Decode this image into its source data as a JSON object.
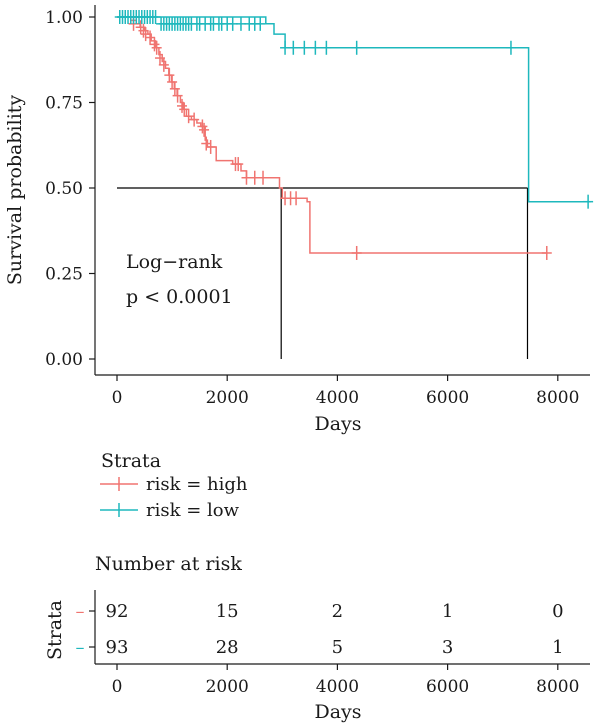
{
  "colors": {
    "high": "#F07470",
    "low": "#1EB8BD",
    "median": "#000000"
  },
  "chart_data": {
    "type": "line",
    "subtype": "kaplan-meier",
    "xlabel": "Days",
    "ylabel": "Survival probability",
    "xlim": [
      0,
      8600
    ],
    "ylim": [
      0,
      1
    ],
    "x_ticks": [
      "0",
      "2000",
      "4000",
      "6000",
      "8000"
    ],
    "x_tick_values": [
      0,
      2000,
      4000,
      6000,
      8000
    ],
    "y_ticks": [
      "0.00",
      "0.25",
      "0.50",
      "0.75",
      "1.00"
    ],
    "y_tick_values": [
      0,
      0.25,
      0.5,
      0.75,
      1.0
    ],
    "annotation": [
      "Log−rank",
      "p < 0.0001"
    ],
    "legend": {
      "title": "Strata",
      "placement": "bottom",
      "entries": [
        "risk = high",
        "risk = low"
      ]
    },
    "series": [
      {
        "name": "risk = high",
        "color": "#F07470",
        "steps": [
          [
            0,
            1.0
          ],
          [
            250,
            0.99
          ],
          [
            350,
            0.98
          ],
          [
            420,
            0.97
          ],
          [
            500,
            0.96
          ],
          [
            560,
            0.95
          ],
          [
            620,
            0.93
          ],
          [
            700,
            0.91
          ],
          [
            760,
            0.89
          ],
          [
            820,
            0.87
          ],
          [
            880,
            0.85
          ],
          [
            940,
            0.83
          ],
          [
            990,
            0.81
          ],
          [
            1040,
            0.79
          ],
          [
            1090,
            0.77
          ],
          [
            1150,
            0.75
          ],
          [
            1200,
            0.73
          ],
          [
            1260,
            0.71
          ],
          [
            1350,
            0.7
          ],
          [
            1450,
            0.69
          ],
          [
            1520,
            0.68
          ],
          [
            1600,
            0.64
          ],
          [
            1640,
            0.62
          ],
          [
            1800,
            0.58
          ],
          [
            2100,
            0.57
          ],
          [
            2250,
            0.55
          ],
          [
            2350,
            0.53
          ],
          [
            2950,
            0.5
          ],
          [
            3000,
            0.47
          ],
          [
            3450,
            0.46
          ],
          [
            3500,
            0.31
          ],
          [
            7800,
            0.31
          ]
        ],
        "censors": [
          [
            150,
            1.0
          ],
          [
            300,
            0.98
          ],
          [
            430,
            0.97
          ],
          [
            480,
            0.96
          ],
          [
            520,
            0.95
          ],
          [
            600,
            0.94
          ],
          [
            680,
            0.92
          ],
          [
            720,
            0.91
          ],
          [
            780,
            0.88
          ],
          [
            850,
            0.86
          ],
          [
            950,
            0.83
          ],
          [
            1000,
            0.81
          ],
          [
            1050,
            0.79
          ],
          [
            1100,
            0.77
          ],
          [
            1180,
            0.74
          ],
          [
            1220,
            0.73
          ],
          [
            1300,
            0.71
          ],
          [
            1400,
            0.7
          ],
          [
            1550,
            0.68
          ],
          [
            1580,
            0.67
          ],
          [
            1620,
            0.63
          ],
          [
            1700,
            0.62
          ],
          [
            2150,
            0.57
          ],
          [
            2200,
            0.57
          ],
          [
            2350,
            0.53
          ],
          [
            2500,
            0.53
          ],
          [
            2650,
            0.53
          ],
          [
            3050,
            0.47
          ],
          [
            3150,
            0.47
          ],
          [
            3250,
            0.47
          ],
          [
            4350,
            0.31
          ],
          [
            7800,
            0.31
          ]
        ]
      },
      {
        "name": "risk = low",
        "color": "#1EB8BD",
        "steps": [
          [
            0,
            1.0
          ],
          [
            2700,
            0.98
          ],
          [
            2850,
            0.95
          ],
          [
            3050,
            0.91
          ],
          [
            7450,
            0.91
          ],
          [
            7470,
            0.46
          ],
          [
            8600,
            0.46
          ]
        ],
        "censors": [
          [
            50,
            1.0
          ],
          [
            100,
            1.0
          ],
          [
            150,
            1.0
          ],
          [
            200,
            1.0
          ],
          [
            250,
            1.0
          ],
          [
            300,
            1.0
          ],
          [
            350,
            1.0
          ],
          [
            400,
            1.0
          ],
          [
            450,
            1.0
          ],
          [
            500,
            1.0
          ],
          [
            550,
            1.0
          ],
          [
            600,
            1.0
          ],
          [
            650,
            1.0
          ],
          [
            700,
            1.0
          ],
          [
            800,
            0.98
          ],
          [
            850,
            0.98
          ],
          [
            900,
            0.98
          ],
          [
            950,
            0.98
          ],
          [
            1000,
            0.98
          ],
          [
            1050,
            0.98
          ],
          [
            1100,
            0.98
          ],
          [
            1150,
            0.98
          ],
          [
            1200,
            0.98
          ],
          [
            1250,
            0.98
          ],
          [
            1300,
            0.98
          ],
          [
            1350,
            0.98
          ],
          [
            1450,
            0.98
          ],
          [
            1500,
            0.98
          ],
          [
            1600,
            0.98
          ],
          [
            1700,
            0.98
          ],
          [
            1750,
            0.98
          ],
          [
            1850,
            0.98
          ],
          [
            1900,
            0.98
          ],
          [
            2000,
            0.98
          ],
          [
            2100,
            0.98
          ],
          [
            2250,
            0.98
          ],
          [
            2400,
            0.98
          ],
          [
            2500,
            0.98
          ],
          [
            2600,
            0.98
          ],
          [
            3050,
            0.91
          ],
          [
            3200,
            0.91
          ],
          [
            3400,
            0.91
          ],
          [
            3600,
            0.91
          ],
          [
            3800,
            0.91
          ],
          [
            4350,
            0.91
          ],
          [
            7150,
            0.91
          ],
          [
            8550,
            0.46
          ]
        ]
      }
    ],
    "median_lines": [
      {
        "y": 0.5,
        "x_start": 0,
        "x_end": 7450
      },
      {
        "x": 2980,
        "y_top": 0.5
      },
      {
        "x": 7450,
        "y_top": 0.5
      }
    ],
    "risk_table": {
      "title": "Number at risk",
      "ylabel": "Strata",
      "xlabel": "Days",
      "time_points": [
        0,
        2000,
        4000,
        6000,
        8000
      ],
      "x_ticks": [
        "0",
        "2000",
        "4000",
        "6000",
        "8000"
      ],
      "rows": [
        {
          "strata": "risk = high",
          "symbol": "–",
          "counts": [
            "92",
            "15",
            "2",
            "1",
            "0"
          ]
        },
        {
          "strata": "risk = low",
          "symbol": "–",
          "counts": [
            "93",
            "28",
            "5",
            "3",
            "1"
          ]
        }
      ]
    }
  }
}
